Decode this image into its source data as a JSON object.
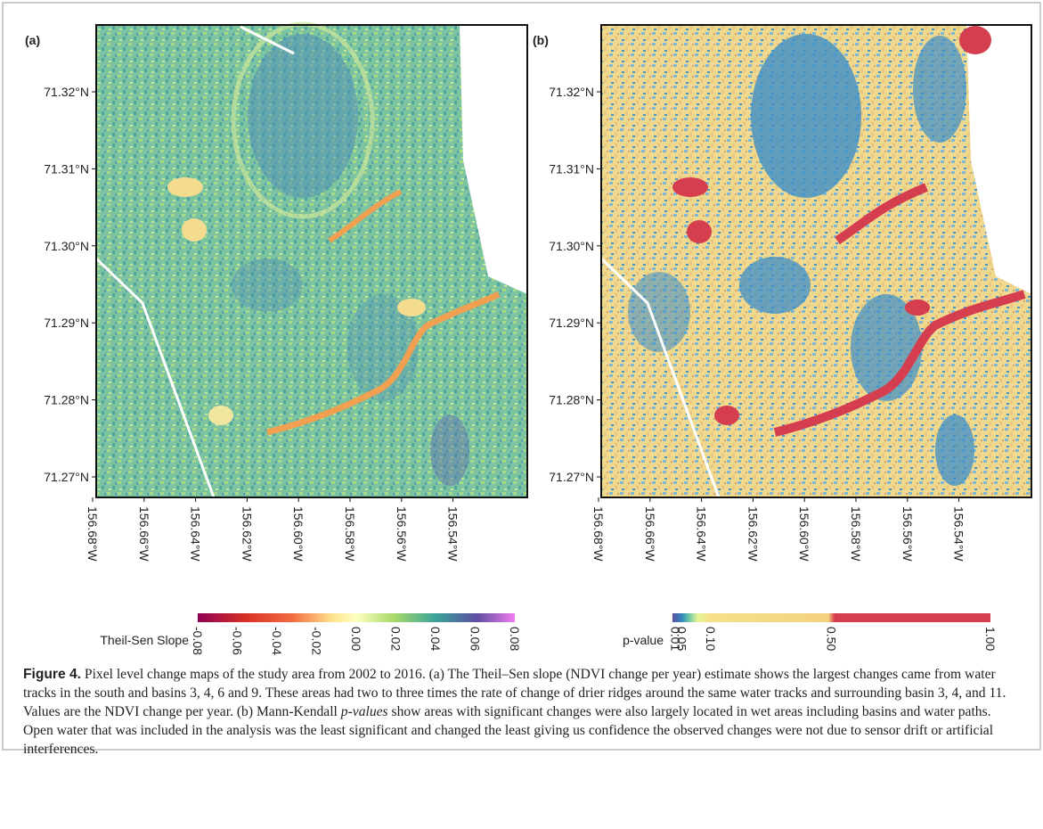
{
  "panels": [
    {
      "label": "(a)",
      "y_ticks": [
        "71.32°N",
        "71.31°N",
        "71.30°N",
        "71.29°N",
        "71.28°N",
        "71.27°N"
      ],
      "x_ticks": [
        "156.68°W",
        "156.66°W",
        "156.64°W",
        "156.62°W",
        "156.60°W",
        "156.58°W",
        "156.56°W",
        "156.54°W"
      ],
      "colorbar": {
        "title": "Theil-Sen Slope",
        "ticks": [
          "-0.08",
          "-0.06",
          "-0.04",
          "-0.02",
          "0.00",
          "0.02",
          "0.04",
          "0.06",
          "0.08"
        ]
      }
    },
    {
      "label": "(b)",
      "y_ticks": [
        "71.32°N",
        "71.31°N",
        "71.30°N",
        "71.29°N",
        "71.28°N",
        "71.27°N"
      ],
      "x_ticks": [
        "156.68°W",
        "156.66°W",
        "156.64°W",
        "156.62°W",
        "156.60°W",
        "156.58°W",
        "156.56°W",
        "156.54°W"
      ],
      "colorbar": {
        "title": "p-value",
        "ticks": [
          "0.01",
          "0.05",
          "0.10",
          "0.50",
          "1.00"
        ]
      }
    }
  ],
  "caption": {
    "label": "Figure 4.",
    "text_a": " Pixel level change maps of the study area from 2002 to 2016. (a) The Theil–Sen slope (NDVI change per year) estimate shows the largest changes came from water tracks in the south and basins 3, 4, 6 and 9. These areas had two to three times the rate of change of drier ridges around the same water tracks and surrounding basin 3, 4, and 11. Values are the NDVI change per year. (b) Mann-Kendall ",
    "italic": "p-values",
    "text_b": " show areas with significant changes were also largely located in wet areas including basins and water paths. Open water that was included in the analysis was the least significant and changed the least giving us confidence the observed changes were not due to sensor drift or artificial interferences."
  }
}
